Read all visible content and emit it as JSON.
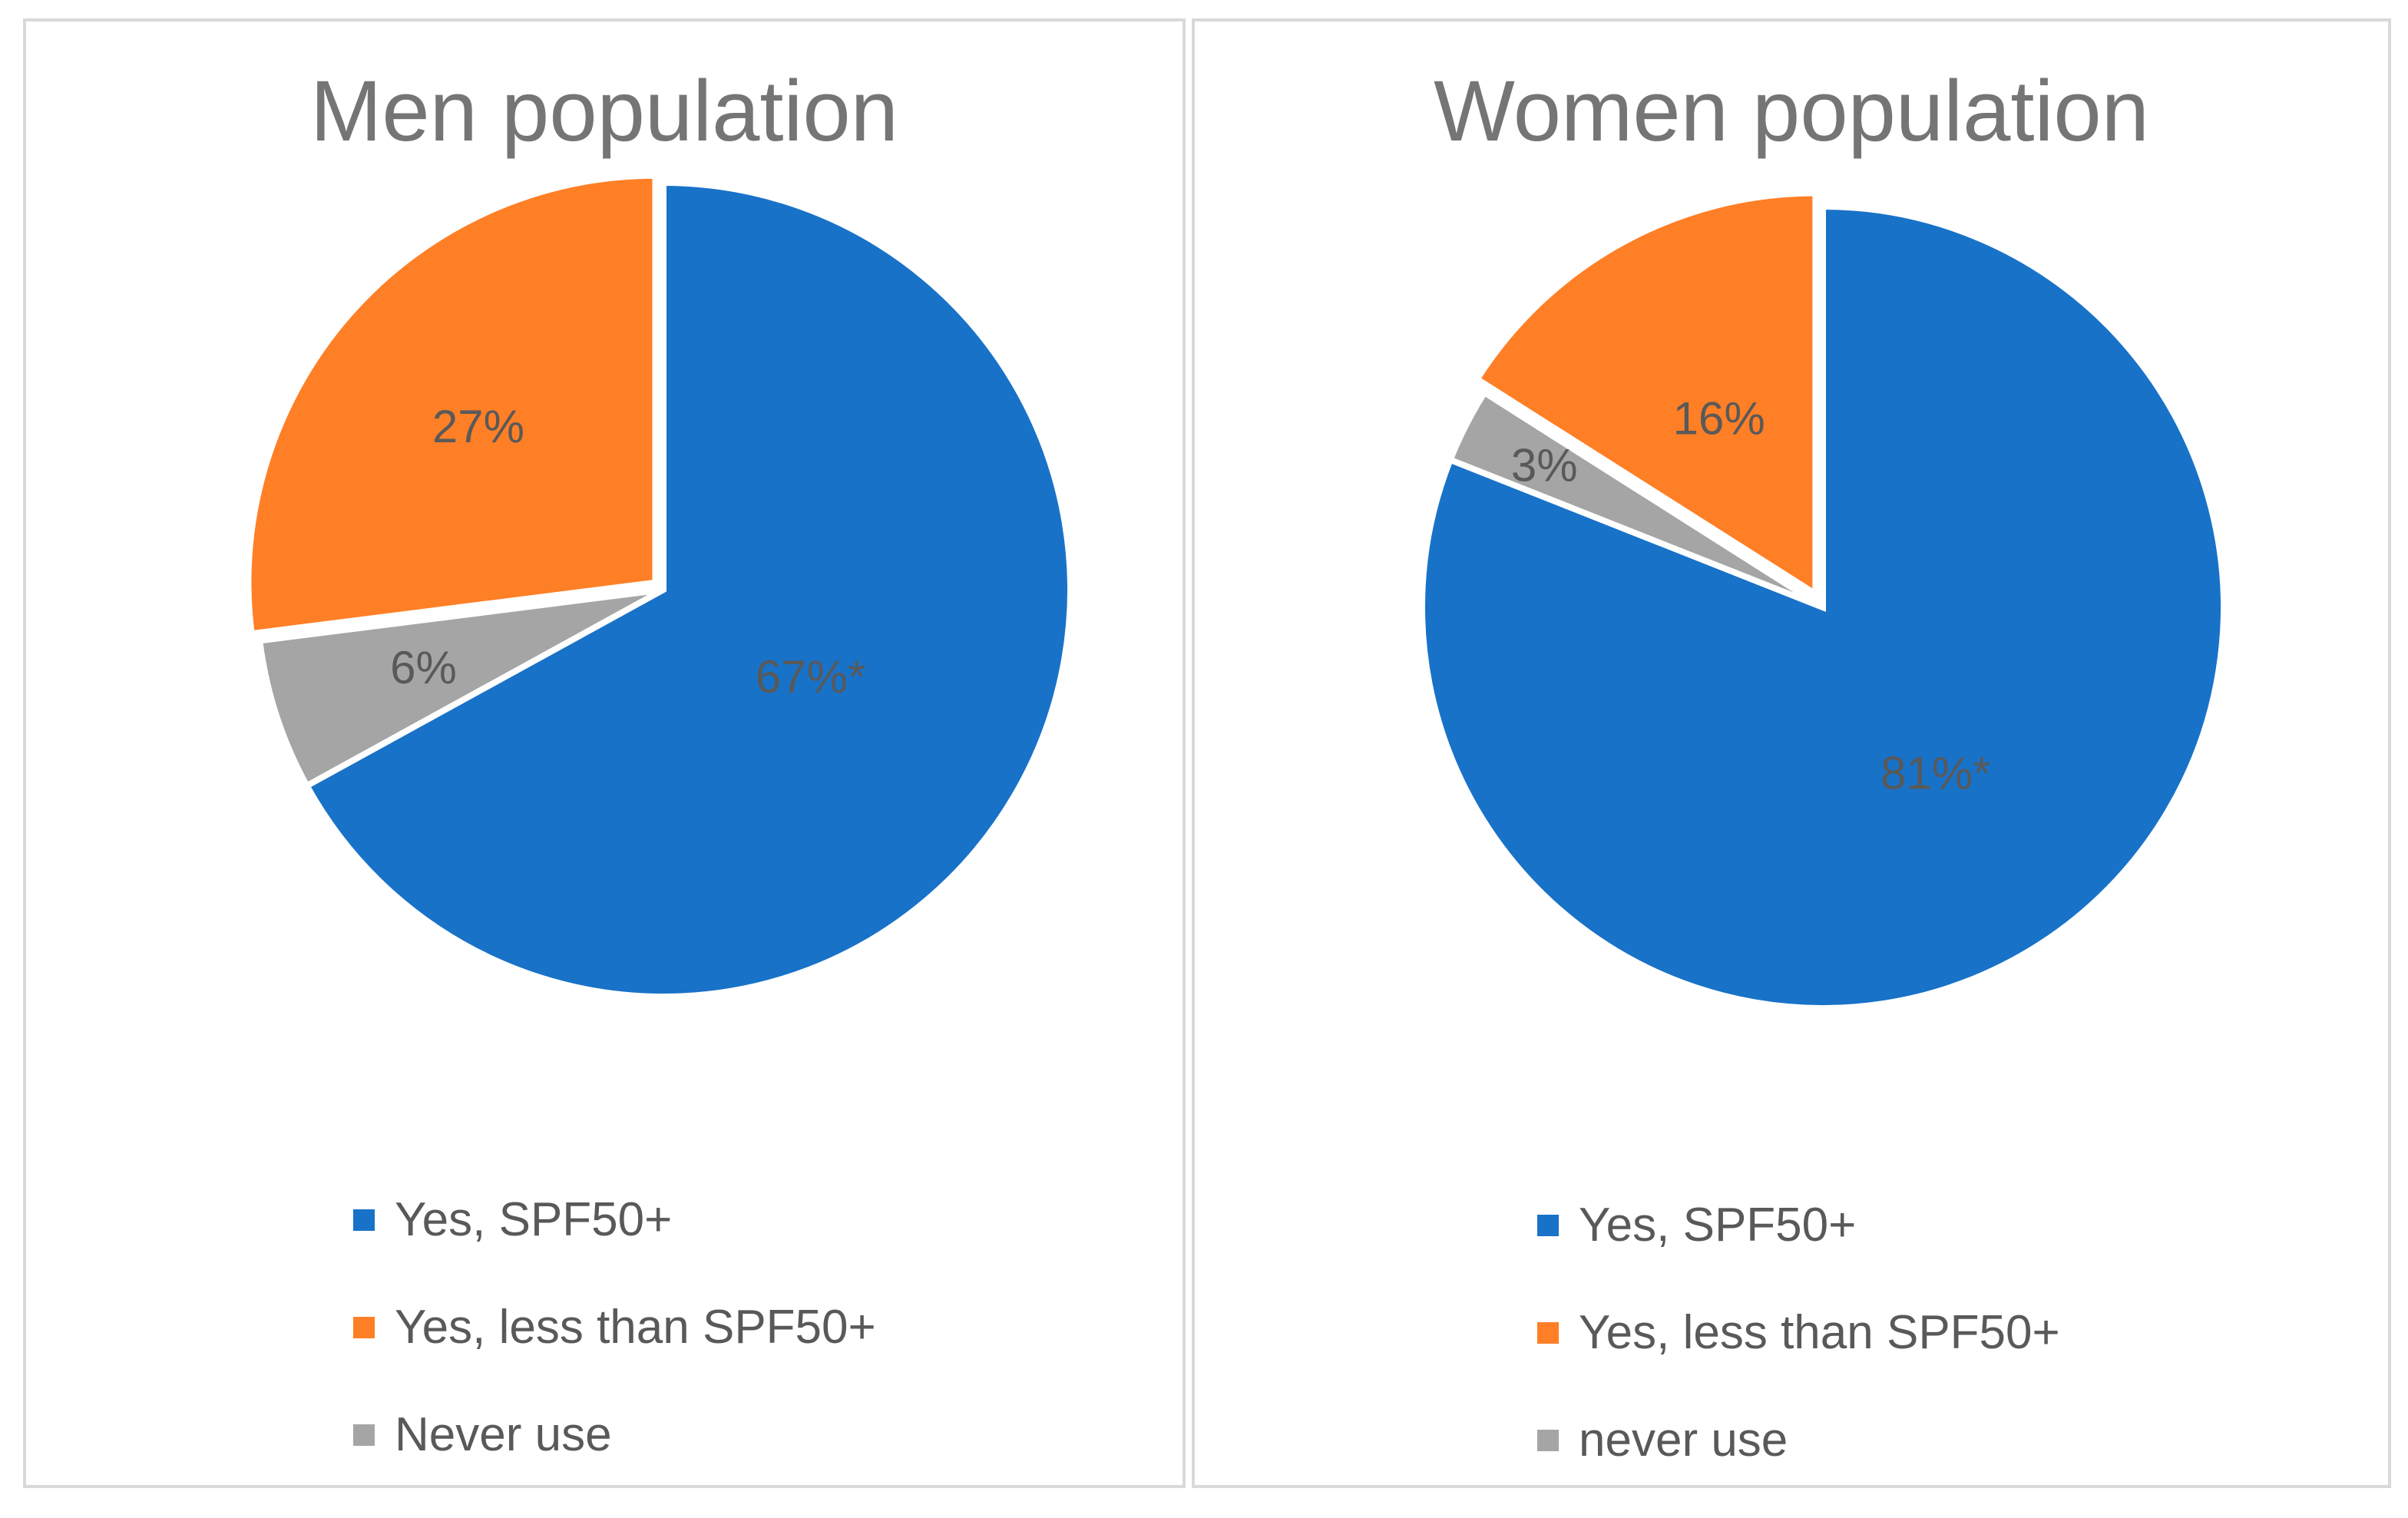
{
  "chart_data": [
    {
      "type": "pie",
      "title": "Men population",
      "start_angle": "12 o'clock, clockwise",
      "slices": [
        {
          "name": "Yes, SPF50+",
          "value": 67,
          "label": "67%*",
          "color": "#1872C8"
        },
        {
          "name": "Never use",
          "value": 6,
          "label": "6%",
          "color": "#A5A5A5"
        },
        {
          "name": "Yes, less than SPF50+",
          "value": 27,
          "label": "27%",
          "color": "#FF7F26"
        }
      ],
      "legend": [
        {
          "label": "Yes, SPF50+",
          "color": "#1872C8"
        },
        {
          "label": "Yes, less than SPF50+",
          "color": "#FF7F26"
        },
        {
          "label": "Never use",
          "color": "#A5A5A5"
        }
      ],
      "legend_position": "bottom"
    },
    {
      "type": "pie",
      "title": "Women population",
      "start_angle": "12 o'clock, clockwise",
      "slices": [
        {
          "name": "Yes, SPF50+",
          "value": 81,
          "label": "81%*",
          "color": "#1872C8"
        },
        {
          "name": "never use",
          "value": 3,
          "label": "3%",
          "color": "#A5A5A5"
        },
        {
          "name": "Yes, less than SPF50+",
          "value": 16,
          "label": "16%",
          "color": "#FF7F26"
        }
      ],
      "legend": [
        {
          "label": "Yes, SPF50+",
          "color": "#1872C8"
        },
        {
          "label": "Yes, less than SPF50+",
          "color": "#FF7F26"
        },
        {
          "label": "never use",
          "color": "#A5A5A5"
        }
      ],
      "legend_position": "bottom"
    }
  ],
  "colors": {
    "label_text": "#595959",
    "title_text": "#757575",
    "border": "#D9D9D9"
  }
}
